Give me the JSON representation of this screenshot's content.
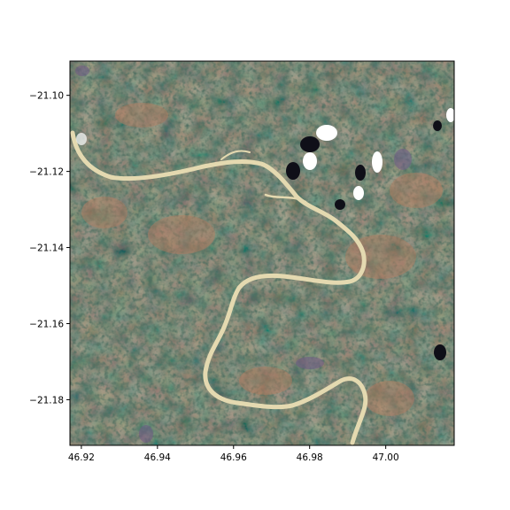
{
  "chart_data": {
    "type": "heatmap",
    "subject": "satellite true-color image tile",
    "title": "",
    "xlabel": "",
    "ylabel": "",
    "xlim": [
      46.917,
      47.018
    ],
    "ylim": [
      -21.192,
      -21.091
    ],
    "x_ticks": [
      {
        "value": 46.92,
        "label": "46.92"
      },
      {
        "value": 46.94,
        "label": "46.94"
      },
      {
        "value": 46.96,
        "label": "46.96"
      },
      {
        "value": 46.98,
        "label": "46.98"
      },
      {
        "value": 47.0,
        "label": "47.00"
      }
    ],
    "y_ticks": [
      {
        "value": -21.1,
        "label": "−21.10"
      },
      {
        "value": -21.12,
        "label": "−21.12"
      },
      {
        "value": -21.14,
        "label": "−21.14"
      },
      {
        "value": -21.16,
        "label": "−21.16"
      },
      {
        "value": -21.18,
        "label": "−21.18"
      }
    ],
    "grid": false,
    "legend": "none",
    "colors": {
      "vegetation": "#3a5a44",
      "dark_vegetation": "#1f3528",
      "bare_soil": "#b27a5e",
      "river_sand": "#e6dcb4",
      "cloud": "#ffffff",
      "cloud_shadow": "#101018",
      "purple_patch": "#6f5a86"
    }
  }
}
